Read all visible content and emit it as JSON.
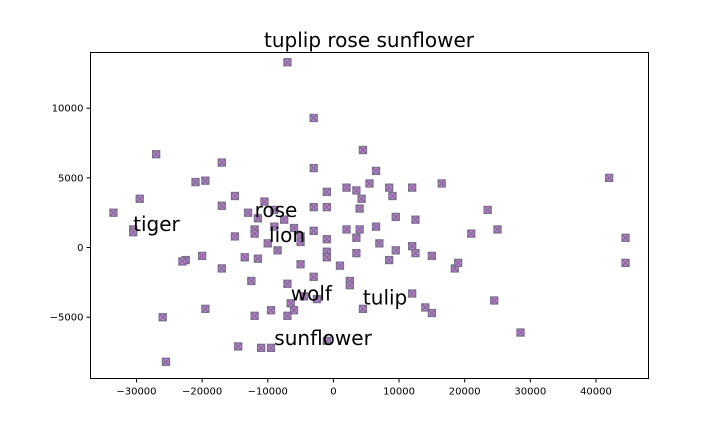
{
  "chart_data": {
    "type": "scatter",
    "title": "tuplip rose sunflower",
    "xlabel": "",
    "ylabel": "",
    "xlim": [
      -37000,
      48000
    ],
    "ylim": [
      -9400,
      14000
    ],
    "grid": false,
    "marker": "x-square",
    "marker_fill": "#c77fd9",
    "marker_edge": "#7b6e8f",
    "x_ticks": [
      {
        "value": -30000,
        "label": "−30000"
      },
      {
        "value": -20000,
        "label": "−20000"
      },
      {
        "value": -10000,
        "label": "−10000"
      },
      {
        "value": 0,
        "label": "0"
      },
      {
        "value": 10000,
        "label": "10000"
      },
      {
        "value": 20000,
        "label": "20000"
      },
      {
        "value": 30000,
        "label": "30000"
      },
      {
        "value": 40000,
        "label": "40000"
      }
    ],
    "y_ticks": [
      {
        "value": -5000,
        "label": "−5000"
      },
      {
        "value": 0,
        "label": "0"
      },
      {
        "value": 5000,
        "label": "5000"
      },
      {
        "value": 10000,
        "label": "10000"
      }
    ],
    "annotations": [
      {
        "text": "tiger",
        "x": -30500,
        "y": 1200
      },
      {
        "text": "rose",
        "x": -12000,
        "y": 2200
      },
      {
        "text": "lion",
        "x": -9800,
        "y": 400
      },
      {
        "text": "wolf",
        "x": -6500,
        "y": -3800
      },
      {
        "text": "tulip",
        "x": 4500,
        "y": -4100
      },
      {
        "text": "sunflower",
        "x": -9000,
        "y": -7000
      }
    ],
    "points": [
      [
        -7000,
        13300
      ],
      [
        -3000,
        9300
      ],
      [
        -27000,
        6700
      ],
      [
        -17000,
        6100
      ],
      [
        -21000,
        4700
      ],
      [
        -19500,
        4800
      ],
      [
        -29500,
        3500
      ],
      [
        -33500,
        2500
      ],
      [
        -30500,
        1300
      ],
      [
        -30500,
        1100
      ],
      [
        -15000,
        3700
      ],
      [
        -17000,
        3000
      ],
      [
        -13000,
        2500
      ],
      [
        -10500,
        3300
      ],
      [
        -9000,
        2700
      ],
      [
        -11500,
        2100
      ],
      [
        -7500,
        2000
      ],
      [
        -12000,
        1300
      ],
      [
        -12000,
        1000
      ],
      [
        -9000,
        1500
      ],
      [
        -6000,
        1400
      ],
      [
        -5000,
        800
      ],
      [
        -5000,
        400
      ],
      [
        -3000,
        1200
      ],
      [
        -1000,
        600
      ],
      [
        -15000,
        800
      ],
      [
        -10000,
        300
      ],
      [
        -8500,
        -200
      ],
      [
        -13500,
        -700
      ],
      [
        -11500,
        -800
      ],
      [
        -20000,
        -600
      ],
      [
        -22500,
        -900
      ],
      [
        -23000,
        -1000
      ],
      [
        -17000,
        -1500
      ],
      [
        -3000,
        5700
      ],
      [
        -3000,
        2900
      ],
      [
        -1000,
        4000
      ],
      [
        -1000,
        2900
      ],
      [
        4500,
        7000
      ],
      [
        2000,
        4300
      ],
      [
        3500,
        4100
      ],
      [
        5500,
        4600
      ],
      [
        6500,
        5500
      ],
      [
        8500,
        4300
      ],
      [
        9000,
        3700
      ],
      [
        4300,
        3500
      ],
      [
        4000,
        2800
      ],
      [
        2000,
        1300
      ],
      [
        4000,
        1300
      ],
      [
        3500,
        700
      ],
      [
        6500,
        1500
      ],
      [
        9500,
        2200
      ],
      [
        7000,
        300
      ],
      [
        9500,
        -200
      ],
      [
        12000,
        4300
      ],
      [
        12500,
        2000
      ],
      [
        12000,
        100
      ],
      [
        12500,
        -400
      ],
      [
        16500,
        4600
      ],
      [
        15000,
        -600
      ],
      [
        8500,
        -900
      ],
      [
        3500,
        -400
      ],
      [
        -1000,
        -300
      ],
      [
        -1000,
        -700
      ],
      [
        -5000,
        -1200
      ],
      [
        -3000,
        -2100
      ],
      [
        1000,
        -1300
      ],
      [
        2500,
        -2400
      ],
      [
        2500,
        -2700
      ],
      [
        -7000,
        -2600
      ],
      [
        -4500,
        -3500
      ],
      [
        -2500,
        -3700
      ],
      [
        -6500,
        -4000
      ],
      [
        -6000,
        -4500
      ],
      [
        -9500,
        -4500
      ],
      [
        -12000,
        -4900
      ],
      [
        -7000,
        -4900
      ],
      [
        -12500,
        -2400
      ],
      [
        -19500,
        -4400
      ],
      [
        -26000,
        -5000
      ],
      [
        -14500,
        -7100
      ],
      [
        -11000,
        -7200
      ],
      [
        -9500,
        -7200
      ],
      [
        -1000,
        -6700
      ],
      [
        -25500,
        -8200
      ],
      [
        12000,
        -3300
      ],
      [
        14000,
        -4300
      ],
      [
        15000,
        -4700
      ],
      [
        18500,
        -1500
      ],
      [
        19000,
        -1100
      ],
      [
        21000,
        1000
      ],
      [
        23500,
        2700
      ],
      [
        25000,
        1300
      ],
      [
        24500,
        -3800
      ],
      [
        28500,
        -6100
      ],
      [
        42000,
        5000
      ],
      [
        44500,
        700
      ],
      [
        44500,
        -1100
      ],
      [
        4500,
        -4400
      ]
    ]
  }
}
